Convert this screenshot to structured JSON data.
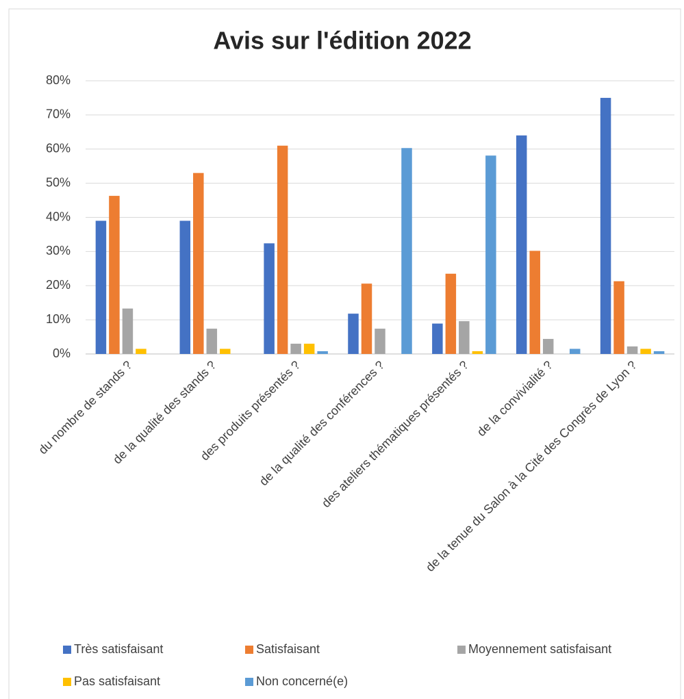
{
  "chart_data": {
    "type": "bar",
    "title": "Avis sur l'édition 2022",
    "categories": [
      "du nombre de stands ?",
      "de la qualité des stands ?",
      "des produits présentés ?",
      "de la qualité des conférences ?",
      "des ateliers thématiques présentés ?",
      "de la convivialité ?",
      "de la tenue du Salon à la Cité des Congrès de Lyon ?"
    ],
    "series": [
      {
        "name": "Très satisfaisant",
        "color": "#4472c4",
        "values": [
          39,
          39,
          32.4,
          11.8,
          8.9,
          64,
          75
        ]
      },
      {
        "name": "Satisfaisant",
        "color": "#ed7d31",
        "values": [
          46.3,
          53,
          61,
          20.6,
          23.5,
          30.2,
          21.3
        ]
      },
      {
        "name": "Moyennement satisfaisant",
        "color": "#a5a5a5",
        "values": [
          13.3,
          7.4,
          3,
          7.4,
          9.6,
          4.4,
          2.2
        ]
      },
      {
        "name": "Pas satisfaisant",
        "color": "#ffc000",
        "values": [
          1.5,
          1.5,
          3,
          0,
          0.8,
          0,
          1.5
        ]
      },
      {
        "name": "Non concerné(e)",
        "color": "#5b9bd5",
        "values": [
          0,
          0,
          0.8,
          60.3,
          58.1,
          1.5,
          0.8
        ]
      }
    ],
    "ylim": [
      0,
      80
    ],
    "yticks": [
      {
        "value": 0,
        "label": "0%"
      },
      {
        "value": 10,
        "label": "10%"
      },
      {
        "value": 20,
        "label": "20%"
      },
      {
        "value": 30,
        "label": "30%"
      },
      {
        "value": 40,
        "label": "40%"
      },
      {
        "value": 50,
        "label": "50%"
      },
      {
        "value": 60,
        "label": "60%"
      },
      {
        "value": 70,
        "label": "70%"
      },
      {
        "value": 80,
        "label": "80%"
      }
    ],
    "grid": true,
    "legend": "bottom"
  }
}
